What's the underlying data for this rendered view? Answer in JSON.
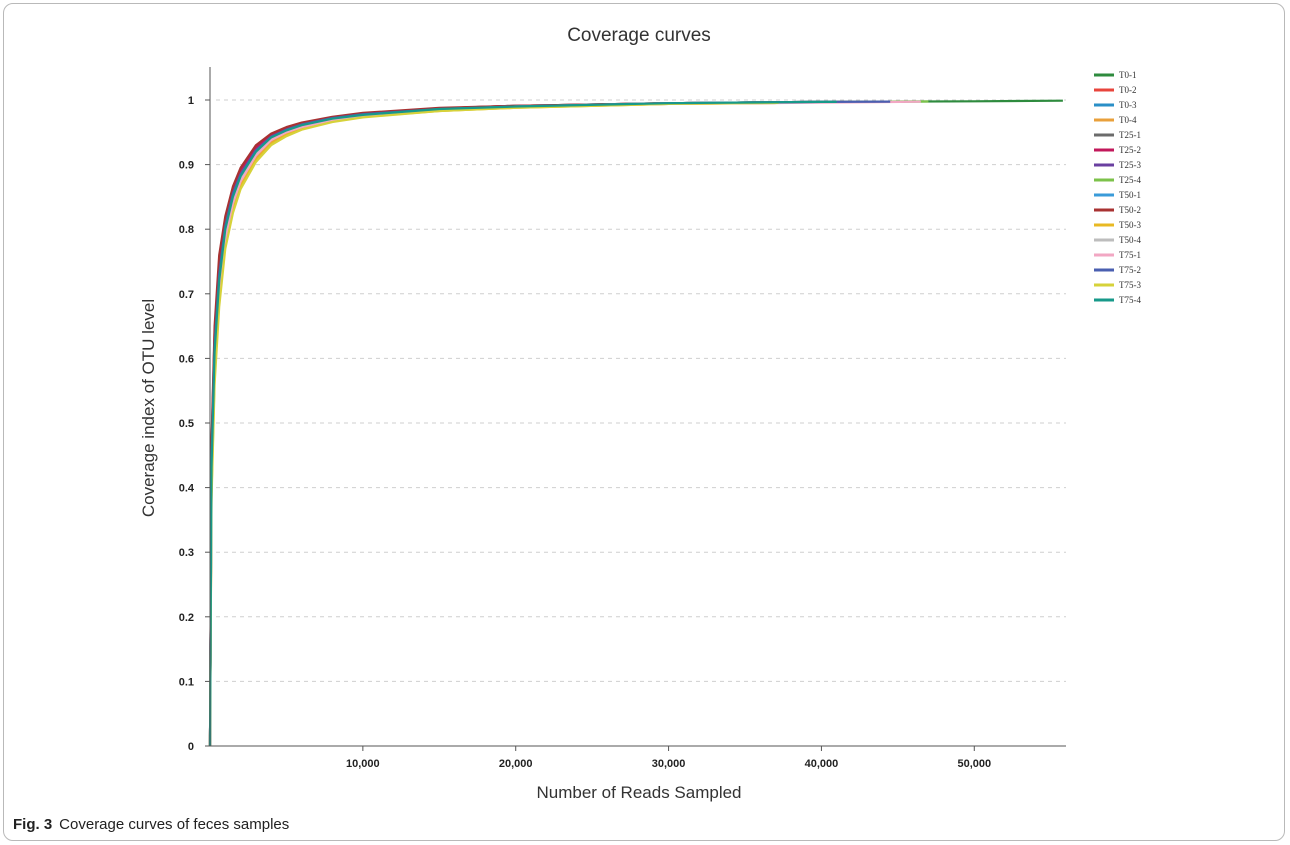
{
  "caption": {
    "label": "Fig. 3",
    "text": "Coverage curves of feces samples"
  },
  "chart_data": {
    "type": "line",
    "title": "Coverage curves",
    "xlabel": "Number of Reads Sampled",
    "ylabel": "Coverage index of OTU level",
    "xlim": [
      0,
      56000
    ],
    "ylim": [
      0,
      1.05
    ],
    "xticks": [
      10000,
      20000,
      30000,
      40000,
      50000
    ],
    "xtick_labels": [
      "10,000",
      "20,000",
      "30,000",
      "40,000",
      "50,000"
    ],
    "yticks": [
      0,
      0.1,
      0.2,
      0.3,
      0.4,
      0.5,
      0.6,
      0.7,
      0.8,
      0.9,
      1
    ],
    "ytick_labels": [
      "0",
      "0.1",
      "0.2",
      "0.3",
      "0.4",
      "0.5",
      "0.6",
      "0.7",
      "0.8",
      "0.9",
      "1"
    ],
    "grid": "horizontal-dashed",
    "legend_position": "right",
    "x": [
      0,
      100,
      300,
      600,
      1000,
      1500,
      2000,
      3000,
      4000,
      5000,
      6000,
      8000,
      10000,
      15000,
      20000,
      30000,
      40000,
      50000,
      56000
    ],
    "series": [
      {
        "name": "T0-1",
        "color": "#2e8b3e",
        "max_x": 55800,
        "values": [
          0,
          0.45,
          0.63,
          0.74,
          0.81,
          0.86,
          0.89,
          0.925,
          0.945,
          0.955,
          0.963,
          0.973,
          0.979,
          0.987,
          0.991,
          0.995,
          0.997,
          0.998,
          0.999
        ]
      },
      {
        "name": "T0-2",
        "color": "#e8453c",
        "max_x": 36000,
        "values": [
          0,
          0.43,
          0.61,
          0.72,
          0.8,
          0.85,
          0.88,
          0.92,
          0.942,
          0.953,
          0.961,
          0.972,
          0.978,
          0.986,
          0.99,
          0.995,
          0.997,
          0.998,
          0.999
        ]
      },
      {
        "name": "T0-3",
        "color": "#2a8fc7",
        "max_x": 42800,
        "values": [
          0,
          0.44,
          0.62,
          0.73,
          0.805,
          0.855,
          0.885,
          0.922,
          0.943,
          0.954,
          0.962,
          0.972,
          0.978,
          0.986,
          0.99,
          0.995,
          0.997,
          0.998,
          0.999
        ]
      },
      {
        "name": "T0-4",
        "color": "#e9a03b",
        "max_x": 37000,
        "values": [
          0,
          0.4,
          0.58,
          0.7,
          0.78,
          0.835,
          0.87,
          0.91,
          0.935,
          0.948,
          0.957,
          0.968,
          0.975,
          0.984,
          0.989,
          0.994,
          0.996,
          0.998,
          0.999
        ]
      },
      {
        "name": "T25-1",
        "color": "#6b6b6b",
        "max_x": 33000,
        "values": [
          0,
          0.45,
          0.63,
          0.74,
          0.81,
          0.86,
          0.89,
          0.925,
          0.945,
          0.955,
          0.963,
          0.973,
          0.979,
          0.987,
          0.991,
          0.995,
          0.997,
          0.998,
          0.999
        ]
      },
      {
        "name": "T25-2",
        "color": "#c2185b",
        "max_x": 42000,
        "values": [
          0,
          0.46,
          0.64,
          0.75,
          0.815,
          0.862,
          0.892,
          0.927,
          0.946,
          0.956,
          0.964,
          0.973,
          0.979,
          0.987,
          0.991,
          0.995,
          0.997,
          0.998,
          0.999
        ]
      },
      {
        "name": "T25-3",
        "color": "#6a3fa0",
        "max_x": 45500,
        "values": [
          0,
          0.44,
          0.62,
          0.73,
          0.805,
          0.855,
          0.885,
          0.922,
          0.943,
          0.954,
          0.962,
          0.972,
          0.978,
          0.986,
          0.99,
          0.995,
          0.997,
          0.998,
          0.999
        ]
      },
      {
        "name": "T25-4",
        "color": "#7cc24a",
        "max_x": 47000,
        "values": [
          0,
          0.43,
          0.61,
          0.72,
          0.8,
          0.85,
          0.882,
          0.92,
          0.942,
          0.953,
          0.961,
          0.971,
          0.977,
          0.986,
          0.99,
          0.995,
          0.997,
          0.998,
          0.999
        ]
      },
      {
        "name": "T50-1",
        "color": "#3a9bd9",
        "max_x": 35000,
        "values": [
          0,
          0.42,
          0.6,
          0.71,
          0.79,
          0.845,
          0.878,
          0.917,
          0.94,
          0.951,
          0.96,
          0.97,
          0.977,
          0.985,
          0.99,
          0.995,
          0.997,
          0.998,
          0.999
        ]
      },
      {
        "name": "T50-2",
        "color": "#a83232",
        "max_x": 38000,
        "values": [
          0,
          0.47,
          0.65,
          0.76,
          0.82,
          0.866,
          0.895,
          0.93,
          0.948,
          0.958,
          0.965,
          0.974,
          0.98,
          0.988,
          0.991,
          0.995,
          0.997,
          0.998,
          0.999
        ]
      },
      {
        "name": "T50-3",
        "color": "#e8b923",
        "max_x": 37500,
        "values": [
          0,
          0.39,
          0.57,
          0.69,
          0.775,
          0.83,
          0.866,
          0.907,
          0.932,
          0.946,
          0.955,
          0.967,
          0.974,
          0.983,
          0.988,
          0.994,
          0.996,
          0.998,
          0.999
        ]
      },
      {
        "name": "T50-4",
        "color": "#bdbdbd",
        "max_x": 36500,
        "values": [
          0,
          0.42,
          0.6,
          0.71,
          0.79,
          0.845,
          0.878,
          0.917,
          0.94,
          0.951,
          0.96,
          0.97,
          0.977,
          0.985,
          0.99,
          0.995,
          0.997,
          0.998,
          0.999
        ]
      },
      {
        "name": "T75-1",
        "color": "#f2a7c3",
        "max_x": 46500,
        "values": [
          0,
          0.41,
          0.59,
          0.705,
          0.785,
          0.84,
          0.874,
          0.914,
          0.938,
          0.95,
          0.958,
          0.969,
          0.976,
          0.985,
          0.989,
          0.994,
          0.996,
          0.998,
          0.999
        ]
      },
      {
        "name": "T75-2",
        "color": "#4a5fb0",
        "max_x": 44500,
        "values": [
          0,
          0.44,
          0.62,
          0.73,
          0.805,
          0.855,
          0.885,
          0.922,
          0.943,
          0.954,
          0.962,
          0.972,
          0.978,
          0.986,
          0.99,
          0.995,
          0.997,
          0.998,
          0.999
        ]
      },
      {
        "name": "T75-3",
        "color": "#d6d23a",
        "max_x": 37200,
        "values": [
          0,
          0.38,
          0.56,
          0.68,
          0.77,
          0.825,
          0.862,
          0.904,
          0.93,
          0.944,
          0.954,
          0.966,
          0.973,
          0.983,
          0.988,
          0.994,
          0.996,
          0.998,
          0.999
        ]
      },
      {
        "name": "T75-4",
        "color": "#17998a",
        "max_x": 41000,
        "values": [
          0,
          0.43,
          0.61,
          0.72,
          0.8,
          0.85,
          0.882,
          0.92,
          0.942,
          0.953,
          0.961,
          0.971,
          0.977,
          0.986,
          0.99,
          0.995,
          0.997,
          0.998,
          0.999
        ]
      }
    ]
  }
}
